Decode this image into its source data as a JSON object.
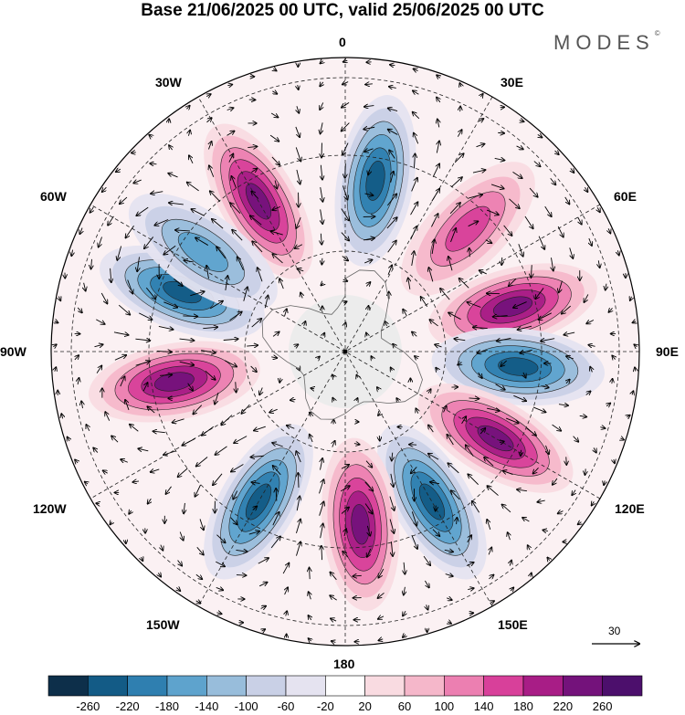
{
  "header": {
    "title": "Base 21/06/2025 00 UTC, valid 25/06/2025 00 UTC",
    "brand": "MODES",
    "brand_mark": "©"
  },
  "map": {
    "projection": "south polar stereographic",
    "longitude_labels": {
      "top": "0",
      "top_right": "30E",
      "right_upper": "60E",
      "right": "90E",
      "right_lower": "120E",
      "bottom_right": "150E",
      "bottom": "180",
      "bottom_left": "150W",
      "left_lower": "120W",
      "left": "90W",
      "left_upper": "60W",
      "top_left": "30W"
    },
    "wind_reference_label": "30",
    "anomaly_centers": [
      {
        "sign": "positive",
        "lon": -30,
        "strength": "strong"
      },
      {
        "sign": "negative",
        "lon": 10,
        "strength": "strong"
      },
      {
        "sign": "positive",
        "lon": 45,
        "strength": "moderate"
      },
      {
        "sign": "positive",
        "lon": 75,
        "strength": "strong"
      },
      {
        "sign": "negative",
        "lon": 95,
        "strength": "strong"
      },
      {
        "sign": "positive",
        "lon": 120,
        "strength": "strong"
      },
      {
        "sign": "negative",
        "lon": 150,
        "strength": "strong"
      },
      {
        "sign": "positive",
        "lon": 175,
        "strength": "strong"
      },
      {
        "sign": "negative",
        "lon": -150,
        "strength": "strong"
      },
      {
        "sign": "positive",
        "lon": -100,
        "strength": "strong"
      },
      {
        "sign": "negative",
        "lon": -70,
        "strength": "strong"
      },
      {
        "sign": "negative",
        "lon": -55,
        "strength": "moderate"
      }
    ]
  },
  "colorbar": {
    "labels": [
      "-260",
      "-220",
      "-180",
      "-140",
      "-100",
      "-60",
      "-20",
      "20",
      "60",
      "100",
      "140",
      "180",
      "220",
      "260"
    ],
    "colors": [
      "#0d2f4a",
      "#135b86",
      "#2f7fb0",
      "#5ea3cd",
      "#98bddb",
      "#c9d0e6",
      "#e5e3f0",
      "#ffffff",
      "#f9dbe1",
      "#f5b7ca",
      "#ec7fb1",
      "#d8409a",
      "#a81d86",
      "#74127b",
      "#4c0f6c"
    ]
  }
}
